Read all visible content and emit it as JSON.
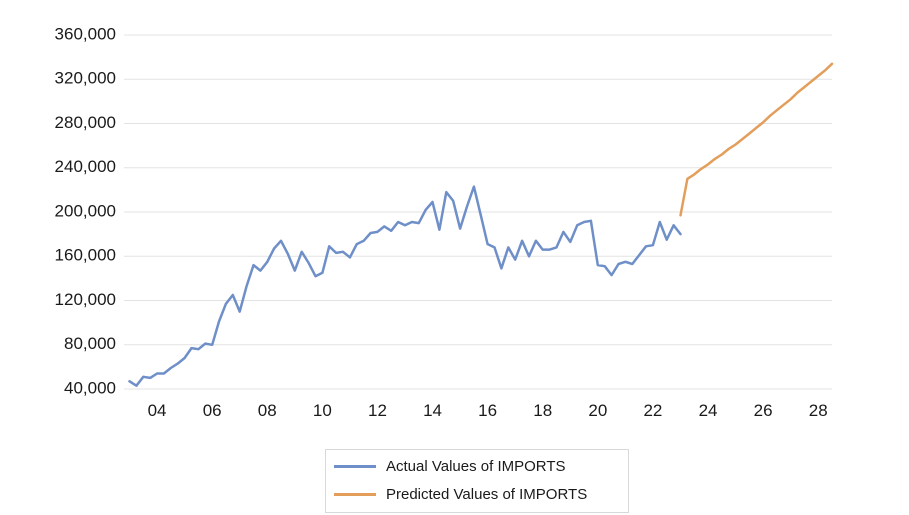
{
  "chart_data": {
    "type": "line",
    "ylim": [
      40000,
      360000
    ],
    "yticks": [
      40000,
      80000,
      120000,
      160000,
      200000,
      240000,
      280000,
      320000,
      360000
    ],
    "ytick_labels": [
      "40,000",
      "80,000",
      "120,000",
      "160,000",
      "200,000",
      "240,000",
      "280,000",
      "320,000",
      "360,000"
    ],
    "xlim": [
      2002.8,
      2028.5
    ],
    "xticks": [
      2004,
      2006,
      2008,
      2010,
      2012,
      2014,
      2016,
      2018,
      2020,
      2022,
      2024,
      2026,
      2028
    ],
    "xtick_labels": [
      "04",
      "06",
      "08",
      "10",
      "12",
      "14",
      "16",
      "18",
      "20",
      "22",
      "24",
      "26",
      "28"
    ],
    "grid": "horizontal",
    "legend_position": "bottom",
    "series": [
      {
        "name": "Actual Values of IMPORTS",
        "color": "#6f8fc8",
        "x": [
          2003.0,
          2003.25,
          2003.5,
          2003.75,
          2004.0,
          2004.25,
          2004.5,
          2004.75,
          2005.0,
          2005.25,
          2005.5,
          2005.75,
          2006.0,
          2006.25,
          2006.5,
          2006.75,
          2007.0,
          2007.25,
          2007.5,
          2007.75,
          2008.0,
          2008.25,
          2008.5,
          2008.75,
          2009.0,
          2009.25,
          2009.5,
          2009.75,
          2010.0,
          2010.25,
          2010.5,
          2010.75,
          2011.0,
          2011.25,
          2011.5,
          2011.75,
          2012.0,
          2012.25,
          2012.5,
          2012.75,
          2013.0,
          2013.25,
          2013.5,
          2013.75,
          2014.0,
          2014.25,
          2014.5,
          2014.75,
          2015.0,
          2015.25,
          2015.5,
          2015.75,
          2016.0,
          2016.25,
          2016.5,
          2016.75,
          2017.0,
          2017.25,
          2017.5,
          2017.75,
          2018.0,
          2018.25,
          2018.5,
          2018.75,
          2019.0,
          2019.25,
          2019.5,
          2019.75,
          2020.0,
          2020.25,
          2020.5,
          2020.75,
          2021.0,
          2021.25,
          2021.5,
          2021.75,
          2022.0,
          2022.25,
          2022.5,
          2022.75,
          2023.0
        ],
        "values": [
          47000,
          43000,
          51000,
          50000,
          54000,
          54000,
          59000,
          63000,
          68000,
          77000,
          76000,
          81000,
          80000,
          101000,
          117000,
          125000,
          110000,
          133000,
          152000,
          147000,
          155000,
          167000,
          174000,
          162000,
          147000,
          164000,
          154000,
          142000,
          145000,
          169000,
          163000,
          164000,
          159000,
          171000,
          174000,
          181000,
          182000,
          187000,
          183000,
          191000,
          188000,
          191000,
          190000,
          202000,
          209000,
          184000,
          218000,
          210000,
          185000,
          205000,
          223000,
          197000,
          171000,
          168000,
          149000,
          168000,
          157000,
          174000,
          160000,
          174000,
          166000,
          166000,
          168000,
          182000,
          173000,
          188000,
          191000,
          192000,
          152000,
          151000,
          143000,
          153000,
          155000,
          153000,
          161000,
          169000,
          170000,
          191000,
          175000,
          188000,
          180000
        ]
      },
      {
        "name": "Predicted Values of IMPORTS",
        "color": "#e39e5c",
        "x": [
          2023.0,
          2023.25,
          2023.5,
          2023.75,
          2024.0,
          2024.25,
          2024.5,
          2024.75,
          2025.0,
          2025.25,
          2025.5,
          2025.75,
          2026.0,
          2026.25,
          2026.5,
          2026.75,
          2027.0,
          2027.25,
          2027.5,
          2027.75,
          2028.0,
          2028.25,
          2028.5
        ],
        "values": [
          197000,
          230000,
          234000,
          239000,
          243000,
          248000,
          252000,
          257000,
          261000,
          266000,
          271000,
          276000,
          281000,
          287000,
          292000,
          297000,
          302000,
          308000,
          313000,
          318000,
          323000,
          328000,
          334000
        ]
      }
    ]
  }
}
